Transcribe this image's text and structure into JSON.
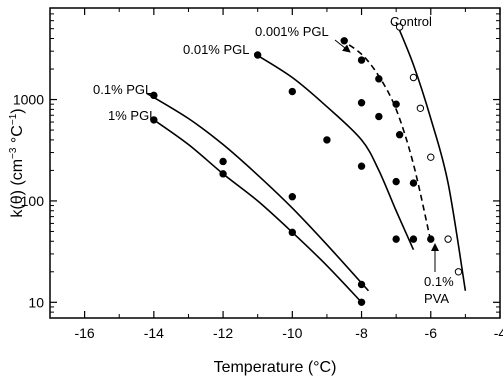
{
  "chart_data": {
    "type": "scatter",
    "xlabel": "Temperature (°C)",
    "ylabel_parts": [
      "k(θ) (cm",
      "−3",
      " °C",
      "−1",
      ")"
    ],
    "xlim": [
      -17,
      -4
    ],
    "ylim": [
      7,
      8000
    ],
    "yscale": "log",
    "xticks": [
      -16,
      -14,
      -12,
      -10,
      -8,
      -6,
      -4
    ],
    "xtick_labels": [
      "-16",
      "-14",
      "-12",
      "-10",
      "-8",
      "-6",
      "-4"
    ],
    "yticks": [
      10,
      100,
      1000
    ],
    "ytick_labels": [
      "10",
      "100",
      "1000"
    ],
    "grid": false,
    "series": [
      {
        "name": "Control",
        "marker": "open",
        "line": "solid",
        "points": [
          [
            -6.9,
            5200
          ],
          [
            -6.5,
            1650
          ],
          [
            -6.3,
            820
          ],
          [
            -6.0,
            270
          ],
          [
            -5.5,
            42
          ],
          [
            -5.2,
            20
          ]
        ],
        "fit": [
          [
            -7.0,
            5800
          ],
          [
            -6.5,
            2200
          ],
          [
            -6.0,
            650
          ],
          [
            -5.5,
            150
          ],
          [
            -5.0,
            13
          ]
        ]
      },
      {
        "name": "0.001% PGL",
        "marker": "filled",
        "line": "dashed",
        "points": [
          [
            -8.5,
            3800
          ],
          [
            -8.0,
            2450
          ],
          [
            -7.5,
            1600
          ],
          [
            -7.0,
            900
          ],
          [
            -6.9,
            450
          ],
          [
            -6.5,
            150
          ],
          [
            -6.0,
            42
          ]
        ],
        "fit": [
          [
            -8.6,
            3900
          ],
          [
            -8.0,
            2800
          ],
          [
            -7.5,
            1700
          ],
          [
            -7.0,
            800
          ],
          [
            -6.5,
            230
          ],
          [
            -6.0,
            40
          ]
        ]
      },
      {
        "name": "0.01% PGL",
        "marker": "filled",
        "line": "solid",
        "points": [
          [
            -11.0,
            2750
          ],
          [
            -10.0,
            1200
          ],
          [
            -9.0,
            400
          ],
          [
            -8.0,
            220
          ],
          [
            -8.0,
            930
          ],
          [
            -7.5,
            680
          ],
          [
            -7.0,
            155
          ],
          [
            -7.0,
            42
          ],
          [
            -6.5,
            42
          ]
        ],
        "fit": [
          [
            -11.1,
            2850
          ],
          [
            -10.0,
            1650
          ],
          [
            -9.0,
            850
          ],
          [
            -8.0,
            400
          ],
          [
            -7.5,
            200
          ],
          [
            -7.0,
            80
          ],
          [
            -6.5,
            33
          ]
        ]
      },
      {
        "name": "0.1% PGL",
        "marker": "filled",
        "line": "solid",
        "points": [
          [
            -14.0,
            1100
          ],
          [
            -12.0,
            245
          ],
          [
            -10.0,
            110
          ],
          [
            -8.0,
            15
          ]
        ],
        "fit": [
          [
            -14.2,
            1150
          ],
          [
            -13.0,
            650
          ],
          [
            -12.0,
            360
          ],
          [
            -11.0,
            180
          ],
          [
            -10.0,
            85
          ],
          [
            -9.0,
            37
          ],
          [
            -7.8,
            13
          ]
        ]
      },
      {
        "name": "1% PGL",
        "marker": "filled",
        "line": "solid",
        "points": [
          [
            -14.0,
            630
          ],
          [
            -12.0,
            185
          ],
          [
            -10.0,
            49
          ],
          [
            -8.0,
            10
          ]
        ],
        "fit": [
          [
            -14.0,
            630
          ],
          [
            -13.0,
            360
          ],
          [
            -12.0,
            185
          ],
          [
            -11.0,
            100
          ],
          [
            -10.0,
            49
          ],
          [
            -9.0,
            23
          ],
          [
            -8.0,
            10
          ]
        ]
      }
    ],
    "annotations": [
      {
        "id": "control",
        "text": "Control"
      },
      {
        "id": "p0001",
        "text": "0.001% PGL"
      },
      {
        "id": "p001",
        "text": "0.01% PGL"
      },
      {
        "id": "p01",
        "text": "0.1% PGL"
      },
      {
        "id": "p1",
        "text": "1% PGL"
      },
      {
        "id": "pva1",
        "text": "0.1%"
      },
      {
        "id": "pva2",
        "text": "PVA"
      }
    ]
  }
}
